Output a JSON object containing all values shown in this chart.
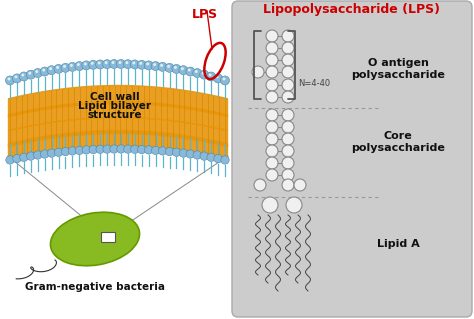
{
  "title": "Lipopolysaccharide (LPS)",
  "title_color": "#cc0000",
  "bg_color": "#ffffff",
  "right_panel_bg": "#cccccc",
  "lps_label": "LPS",
  "lps_label_color": "#cc0000",
  "cell_wall_label1": "Cell wall",
  "cell_wall_label2": "Lipid bilayer",
  "cell_wall_label3": "structure",
  "bacteria_label": "Gram-negative bacteria",
  "o_antigen_label": "O antigen\npolysaccharide",
  "core_label": "Core\npolysaccharide",
  "lipid_label": "Lipid A",
  "n_label": "N=4-40",
  "membrane_head_color": "#7aafcc",
  "membrane_tail_color": "#e8950a",
  "bacteria_color": "#88bb22",
  "bacteria_edge": "#669900",
  "circle_color": "#cc0000",
  "sugar_color": "#f0f0f0",
  "sugar_edge": "#888888",
  "panel_edge": "#aaaaaa"
}
